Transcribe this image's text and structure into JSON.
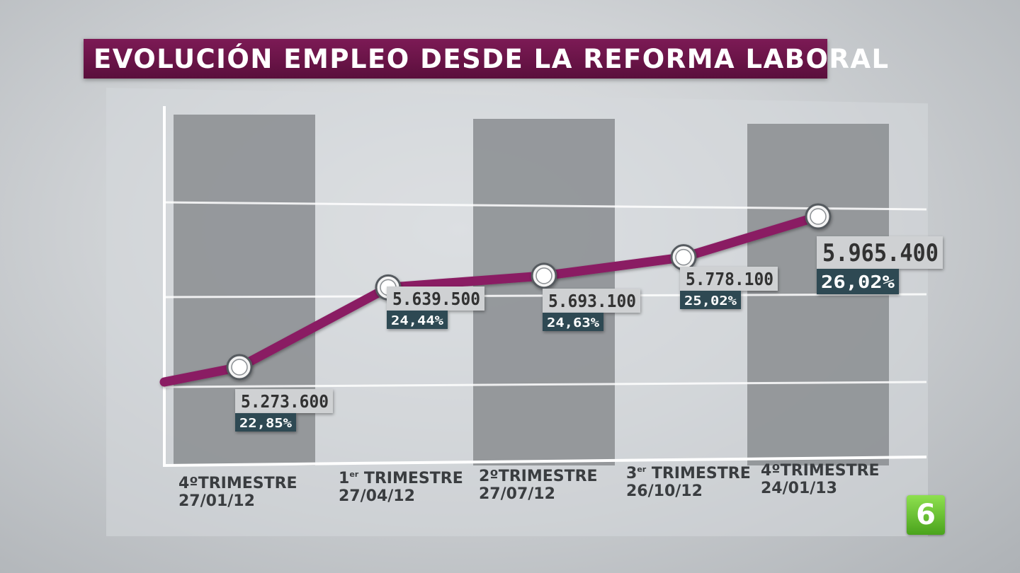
{
  "title": "EVOLUCIÓN EMPLEO DESDE LA REFORMA LABORAL",
  "logo": "6",
  "colors": {
    "title_bg": "#6b1448",
    "line": "#8a1f63",
    "bar": "#8f9296",
    "value_box": "#cfd1d3",
    "percent_box": "#2f4a52"
  },
  "chart_data": {
    "type": "line",
    "title": "EVOLUCIÓN EMPLEO DESDE LA REFORMA LABORAL",
    "xlabel": "",
    "ylabel": "",
    "grid": true,
    "categories": [
      {
        "line1": "4ºTRIMESTRE",
        "sup": "",
        "line2": "27/01/12"
      },
      {
        "line1": "1",
        "sup": "er",
        "rest": " TRIMESTRE",
        "line2": "27/04/12"
      },
      {
        "line1": "2ºTRIMESTRE",
        "sup": "",
        "line2": "27/07/12"
      },
      {
        "line1": "3",
        "sup": "er",
        "rest": " TRIMESTRE",
        "line2": "26/10/12"
      },
      {
        "line1": "4ºTRIMESTRE",
        "sup": "",
        "line2": "24/01/13"
      }
    ],
    "series": [
      {
        "values": [
          5273600,
          5639500,
          5693100,
          5778100,
          5965400
        ],
        "value_labels": [
          "5.273.600",
          "5.639.500",
          "5.693.100",
          "5.778.100",
          "5.965.400"
        ],
        "percent_labels": [
          "22,85%",
          "24,44%",
          "24,63%",
          "25,02%",
          "26,02%"
        ]
      }
    ]
  }
}
